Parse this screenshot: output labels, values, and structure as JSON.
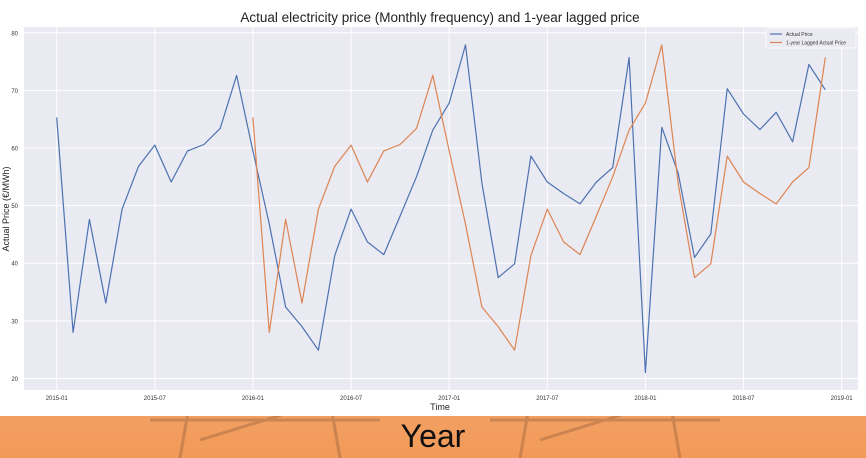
{
  "caption": "Year",
  "chart_data": {
    "type": "line",
    "title": "Actual electricity price (Monthly frequency) and 1-year lagged price",
    "xlabel": "Time",
    "ylabel": "Actual Price (€/MWh)",
    "ylim": [
      18,
      81
    ],
    "yticks": [
      20,
      30,
      40,
      50,
      60,
      70,
      80
    ],
    "xlim": [
      "2014-11",
      "2019-02"
    ],
    "xticks": [
      "2015-01",
      "2015-07",
      "2016-01",
      "2016-07",
      "2017-01",
      "2017-07",
      "2018-01",
      "2018-07",
      "2019-01"
    ],
    "grid": true,
    "legend_position": "top-right",
    "series": [
      {
        "name": "Actual Price",
        "color": "#4c72b0",
        "x": [
          "2015-01",
          "2015-02",
          "2015-03",
          "2015-04",
          "2015-05",
          "2015-06",
          "2015-07",
          "2015-08",
          "2015-09",
          "2015-10",
          "2015-11",
          "2015-12",
          "2016-01",
          "2016-02",
          "2016-03",
          "2016-04",
          "2016-05",
          "2016-06",
          "2016-07",
          "2016-08",
          "2016-09",
          "2016-10",
          "2016-11",
          "2016-12",
          "2017-01",
          "2017-02",
          "2017-03",
          "2017-04",
          "2017-05",
          "2017-06",
          "2017-07",
          "2017-08",
          "2017-09",
          "2017-10",
          "2017-11",
          "2017-12",
          "2018-01",
          "2018-02",
          "2018-03",
          "2018-04",
          "2018-05",
          "2018-06",
          "2018-07",
          "2018-08",
          "2018-09",
          "2018-10",
          "2018-11",
          "2018-12"
        ],
        "values": [
          65.3,
          28.0,
          47.6,
          33.1,
          49.4,
          56.8,
          60.5,
          54.1,
          59.5,
          60.6,
          63.4,
          72.6,
          59.5,
          46.8,
          32.4,
          29.0,
          24.9,
          41.3,
          49.4,
          43.7,
          41.5,
          48.2,
          55.0,
          63.1,
          67.8,
          77.9,
          53.9,
          37.5,
          39.9,
          58.6,
          54.1,
          52.1,
          50.3,
          54.1,
          56.6,
          75.7,
          21.0,
          63.6,
          55.7,
          41.0,
          45.1,
          70.3,
          65.9,
          63.2,
          66.2,
          61.1,
          74.5,
          70.1
        ]
      },
      {
        "name": "1-year Lagged Actual Price",
        "color": "#dd8452",
        "x": [
          "2016-01",
          "2016-02",
          "2016-03",
          "2016-04",
          "2016-05",
          "2016-06",
          "2016-07",
          "2016-08",
          "2016-09",
          "2016-10",
          "2016-11",
          "2016-12",
          "2017-01",
          "2017-02",
          "2017-03",
          "2017-04",
          "2017-05",
          "2017-06",
          "2017-07",
          "2017-08",
          "2017-09",
          "2017-10",
          "2017-11",
          "2017-12",
          "2018-01",
          "2018-02",
          "2018-03",
          "2018-04",
          "2018-05",
          "2018-06",
          "2018-07",
          "2018-08",
          "2018-09",
          "2018-10",
          "2018-11",
          "2018-12"
        ],
        "values": [
          65.3,
          28.0,
          47.6,
          33.1,
          49.4,
          56.8,
          60.5,
          54.1,
          59.5,
          60.6,
          63.4,
          72.6,
          59.5,
          46.8,
          32.4,
          29.0,
          24.9,
          41.3,
          49.4,
          43.7,
          41.5,
          48.2,
          55.0,
          63.1,
          67.8,
          77.9,
          53.9,
          37.5,
          39.9,
          58.6,
          54.1,
          52.1,
          50.3,
          54.1,
          56.6,
          75.7
        ]
      }
    ]
  }
}
